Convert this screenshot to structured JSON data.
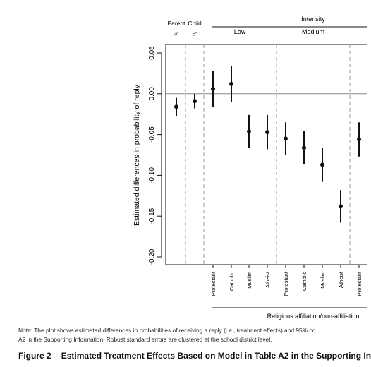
{
  "chart_data": {
    "type": "scatter",
    "variant": "point estimates with 95% confidence intervals",
    "ylabel": "Estimated differences in probability of reply",
    "ylim": [
      -0.2,
      0.05
    ],
    "yticks": [
      "0.05",
      "0.00",
      "-0.05",
      "-0.10",
      "-0.15",
      "-0.20"
    ],
    "reference_line": 0,
    "group_headers": {
      "parent": "Parent",
      "child": "Child",
      "gender_symbol": "♂",
      "intensity": "Intensity",
      "low": "Low",
      "medium": "Medium",
      "bottom_label": "Religious affiliation/non-affiliation"
    },
    "categories": [
      "",
      "",
      "Protestant",
      "Catholic",
      "Muslim",
      "Atheist",
      "Protestant",
      "Catholic",
      "Muslim",
      "Atheist",
      "Protestant"
    ],
    "series": [
      {
        "estimates": [
          -0.016,
          -0.009,
          0.006,
          0.012,
          -0.046,
          -0.047,
          -0.055,
          -0.066,
          -0.087,
          -0.138,
          -0.056
        ],
        "ci_low": [
          -0.027,
          -0.018,
          -0.016,
          -0.01,
          -0.066,
          -0.068,
          -0.075,
          -0.086,
          -0.108,
          -0.158,
          -0.077
        ],
        "ci_high": [
          -0.005,
          0.0,
          0.028,
          0.034,
          -0.026,
          -0.026,
          -0.035,
          -0.046,
          -0.066,
          -0.118,
          -0.035
        ]
      }
    ]
  },
  "note": {
    "line1": "Note: The plot shows estimated differences in probabilities of receiving a reply (i.e., treatment effects) and 95% co",
    "line2": "A2 in the Supporting Information. Robust standard errors are clustered at the school district level."
  },
  "caption": {
    "figure": "Figure 2",
    "title": "Estimated Treatment Effects Based on Model in Table A2 in the Supporting In"
  }
}
